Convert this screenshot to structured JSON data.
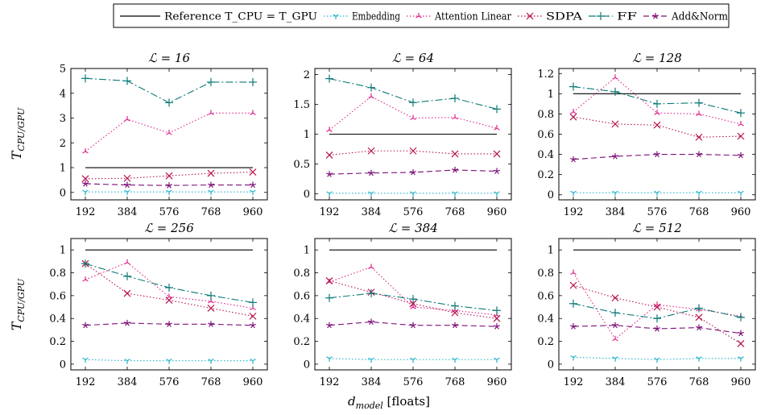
{
  "figure": {
    "xlabel": "d_model [floats]",
    "ylabel": "T_CPU/GPU"
  },
  "legend": {
    "items": [
      {
        "label": "Reference T_CPU = T_GPU",
        "color": "#000000",
        "style": "solid",
        "marker": "none"
      },
      {
        "label": "Embedding",
        "color": "#22b2cc",
        "style": "dotted",
        "marker": "tri-down"
      },
      {
        "label": "Attention Linear",
        "color": "#e0278d",
        "style": "dotted",
        "marker": "tri-up"
      },
      {
        "label": "SDPA",
        "color": "#b5134f",
        "style": "dotted",
        "marker": "x"
      },
      {
        "label": "FF",
        "color": "#0d7a78",
        "style": "dashdot",
        "marker": "plus"
      },
      {
        "label": "Add&Norm",
        "color": "#7d1079",
        "style": "dashed",
        "marker": "star"
      }
    ]
  },
  "chart_data": [
    {
      "type": "line",
      "title": "L = 16",
      "x": [
        192,
        384,
        576,
        768,
        960
      ],
      "ylim": [
        -0.3,
        5
      ],
      "yticks": [
        0,
        1,
        2,
        3,
        4,
        5
      ],
      "ytick_labels": [
        "0",
        "1",
        "2",
        "3",
        "4",
        "5"
      ],
      "ylabel": "T_CPU/GPU",
      "xlabel": "",
      "series": [
        {
          "name": "Reference T_CPU = T_GPU",
          "values": [
            1,
            1,
            1,
            1,
            1
          ]
        },
        {
          "name": "Embedding",
          "values": [
            0.02,
            0.02,
            0.02,
            0.02,
            0.02
          ]
        },
        {
          "name": "Attention Linear",
          "values": [
            1.65,
            2.95,
            2.4,
            3.2,
            3.2
          ]
        },
        {
          "name": "SDPA",
          "values": [
            0.55,
            0.57,
            0.67,
            0.77,
            0.82
          ]
        },
        {
          "name": "FF",
          "values": [
            4.6,
            4.5,
            3.62,
            4.45,
            4.45
          ]
        },
        {
          "name": "Add&Norm",
          "values": [
            0.35,
            0.3,
            0.28,
            0.3,
            0.3
          ]
        }
      ]
    },
    {
      "type": "line",
      "title": "L = 64",
      "x": [
        192,
        384,
        576,
        768,
        960
      ],
      "ylim": [
        -0.1,
        2.1
      ],
      "yticks": [
        0,
        0.5,
        1,
        1.5,
        2
      ],
      "ytick_labels": [
        "0",
        "0.5",
        "1",
        "1.5",
        "2"
      ],
      "ylabel": "",
      "xlabel": "",
      "series": [
        {
          "name": "Reference T_CPU = T_GPU",
          "values": [
            1,
            1,
            1,
            1,
            1
          ]
        },
        {
          "name": "Embedding",
          "values": [
            0.01,
            0.01,
            0.01,
            0.01,
            0.01
          ]
        },
        {
          "name": "Attention Linear",
          "values": [
            1.07,
            1.63,
            1.27,
            1.28,
            1.1
          ]
        },
        {
          "name": "SDPA",
          "values": [
            0.65,
            0.72,
            0.72,
            0.67,
            0.67
          ]
        },
        {
          "name": "FF",
          "values": [
            1.93,
            1.78,
            1.53,
            1.6,
            1.42
          ]
        },
        {
          "name": "Add&Norm",
          "values": [
            0.33,
            0.35,
            0.36,
            0.4,
            0.38
          ]
        }
      ]
    },
    {
      "type": "line",
      "title": "L = 128",
      "x": [
        192,
        384,
        576,
        768,
        960
      ],
      "ylim": [
        -0.05,
        1.25
      ],
      "yticks": [
        0,
        0.2,
        0.4,
        0.6,
        0.8,
        1,
        1.2
      ],
      "ytick_labels": [
        "0",
        "0.2",
        "0.4",
        "0.6",
        "0.8",
        "1",
        "1.2"
      ],
      "ylabel": "",
      "xlabel": "",
      "series": [
        {
          "name": "Reference T_CPU = T_GPU",
          "values": [
            1,
            1,
            1,
            1,
            1
          ]
        },
        {
          "name": "Embedding",
          "values": [
            0.02,
            0.02,
            0.02,
            0.02,
            0.02
          ]
        },
        {
          "name": "Attention Linear",
          "values": [
            0.82,
            1.16,
            0.81,
            0.8,
            0.7
          ]
        },
        {
          "name": "SDPA",
          "values": [
            0.77,
            0.7,
            0.69,
            0.57,
            0.58
          ]
        },
        {
          "name": "FF",
          "values": [
            1.07,
            1.02,
            0.9,
            0.91,
            0.81
          ]
        },
        {
          "name": "Add&Norm",
          "values": [
            0.35,
            0.38,
            0.4,
            0.4,
            0.39
          ]
        }
      ]
    },
    {
      "type": "line",
      "title": "L = 256",
      "x": [
        192,
        384,
        576,
        768,
        960
      ],
      "ylim": [
        -0.05,
        1.1
      ],
      "yticks": [
        0,
        0.2,
        0.4,
        0.6,
        0.8,
        1
      ],
      "ytick_labels": [
        "0",
        "0.2",
        "0.4",
        "0.6",
        "0.8",
        "1"
      ],
      "ylabel": "T_CPU/GPU",
      "xlabel": "",
      "series": [
        {
          "name": "Reference T_CPU = T_GPU",
          "values": [
            1,
            1,
            1,
            1,
            1
          ]
        },
        {
          "name": "Embedding",
          "values": [
            0.04,
            0.03,
            0.03,
            0.03,
            0.03
          ]
        },
        {
          "name": "Attention Linear",
          "values": [
            0.74,
            0.89,
            0.59,
            0.55,
            0.49
          ]
        },
        {
          "name": "SDPA",
          "values": [
            0.88,
            0.62,
            0.56,
            0.49,
            0.42
          ]
        },
        {
          "name": "FF",
          "values": [
            0.88,
            0.77,
            0.67,
            0.6,
            0.54
          ]
        },
        {
          "name": "Add&Norm",
          "values": [
            0.34,
            0.36,
            0.35,
            0.35,
            0.34
          ]
        }
      ]
    },
    {
      "type": "line",
      "title": "L = 384",
      "x": [
        192,
        384,
        576,
        768,
        960
      ],
      "ylim": [
        -0.05,
        1.1
      ],
      "yticks": [
        0,
        0.2,
        0.4,
        0.6,
        0.8,
        1
      ],
      "ytick_labels": [
        "0",
        "0.2",
        "0.4",
        "0.6",
        "0.8",
        "1"
      ],
      "ylabel": "",
      "xlabel": "d_model [floats]",
      "series": [
        {
          "name": "Reference T_CPU = T_GPU",
          "values": [
            1,
            1,
            1,
            1,
            1
          ]
        },
        {
          "name": "Embedding",
          "values": [
            0.05,
            0.04,
            0.04,
            0.04,
            0.04
          ]
        },
        {
          "name": "Attention Linear",
          "values": [
            0.72,
            0.85,
            0.5,
            0.47,
            0.43
          ]
        },
        {
          "name": "SDPA",
          "values": [
            0.73,
            0.63,
            0.53,
            0.45,
            0.4
          ]
        },
        {
          "name": "FF",
          "values": [
            0.58,
            0.62,
            0.57,
            0.51,
            0.47
          ]
        },
        {
          "name": "Add&Norm",
          "values": [
            0.34,
            0.37,
            0.34,
            0.34,
            0.33
          ]
        }
      ]
    },
    {
      "type": "line",
      "title": "L = 512",
      "x": [
        192,
        384,
        576,
        768,
        960
      ],
      "ylim": [
        -0.05,
        1.1
      ],
      "yticks": [
        0,
        0.2,
        0.4,
        0.6,
        0.8,
        1
      ],
      "ytick_labels": [
        "0",
        "0.2",
        "0.4",
        "0.6",
        "0.8",
        "1"
      ],
      "ylabel": "",
      "xlabel": "",
      "series": [
        {
          "name": "Reference T_CPU = T_GPU",
          "values": [
            1,
            1,
            1,
            1,
            1
          ]
        },
        {
          "name": "Embedding",
          "values": [
            0.06,
            0.05,
            0.04,
            0.05,
            0.05
          ]
        },
        {
          "name": "Attention Linear",
          "values": [
            0.8,
            0.22,
            0.52,
            0.48,
            0.42
          ]
        },
        {
          "name": "SDPA",
          "values": [
            0.69,
            0.58,
            0.5,
            0.41,
            0.18
          ]
        },
        {
          "name": "FF",
          "values": [
            0.53,
            0.45,
            0.4,
            0.49,
            0.41
          ]
        },
        {
          "name": "Add&Norm",
          "values": [
            0.33,
            0.34,
            0.31,
            0.32,
            0.27
          ]
        }
      ]
    }
  ]
}
